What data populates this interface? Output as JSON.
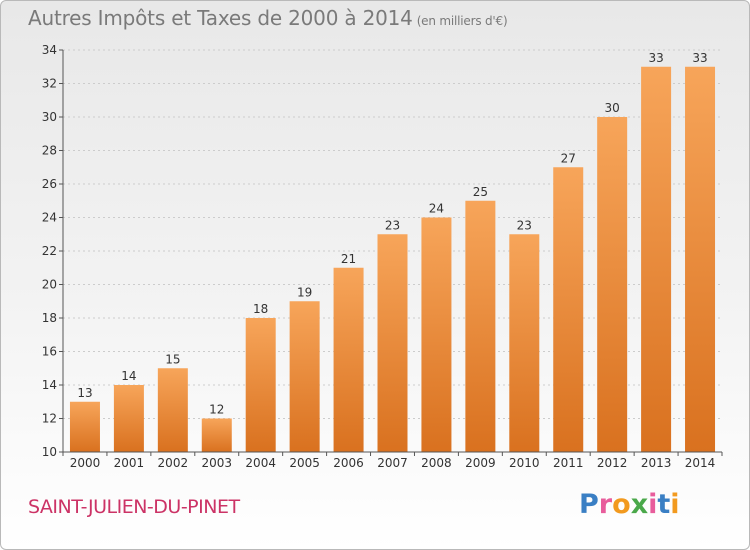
{
  "title": "Autres Impôts et Taxes de 2000 à 2014",
  "subtitle": "(en milliers d'€)",
  "commune": "SAINT-JULIEN-DU-PINET",
  "logo": {
    "text": "Proxiti",
    "colors": [
      "#3a7fc4",
      "#e85d9c",
      "#f29a1f",
      "#4aa84a",
      "#e85d9c",
      "#3a7fc4",
      "#f29a1f"
    ]
  },
  "colors": {
    "bar_light": "#f7a55a",
    "bar_dark": "#d9711f",
    "axis": "#555555",
    "grid": "#cccccc",
    "label": "#333333"
  },
  "chart_data": {
    "type": "bar",
    "categories": [
      "2000",
      "2001",
      "2002",
      "2003",
      "2004",
      "2005",
      "2006",
      "2007",
      "2008",
      "2009",
      "2010",
      "2011",
      "2012",
      "2013",
      "2014"
    ],
    "values": [
      13,
      14,
      15,
      12,
      18,
      19,
      21,
      23,
      24,
      25,
      23,
      27,
      30,
      33,
      33
    ],
    "ylim": [
      10,
      34
    ],
    "yticks": [
      10,
      12,
      14,
      16,
      18,
      20,
      22,
      24,
      26,
      28,
      30,
      32,
      34
    ],
    "grid": true,
    "xlabel": "",
    "ylabel": ""
  }
}
